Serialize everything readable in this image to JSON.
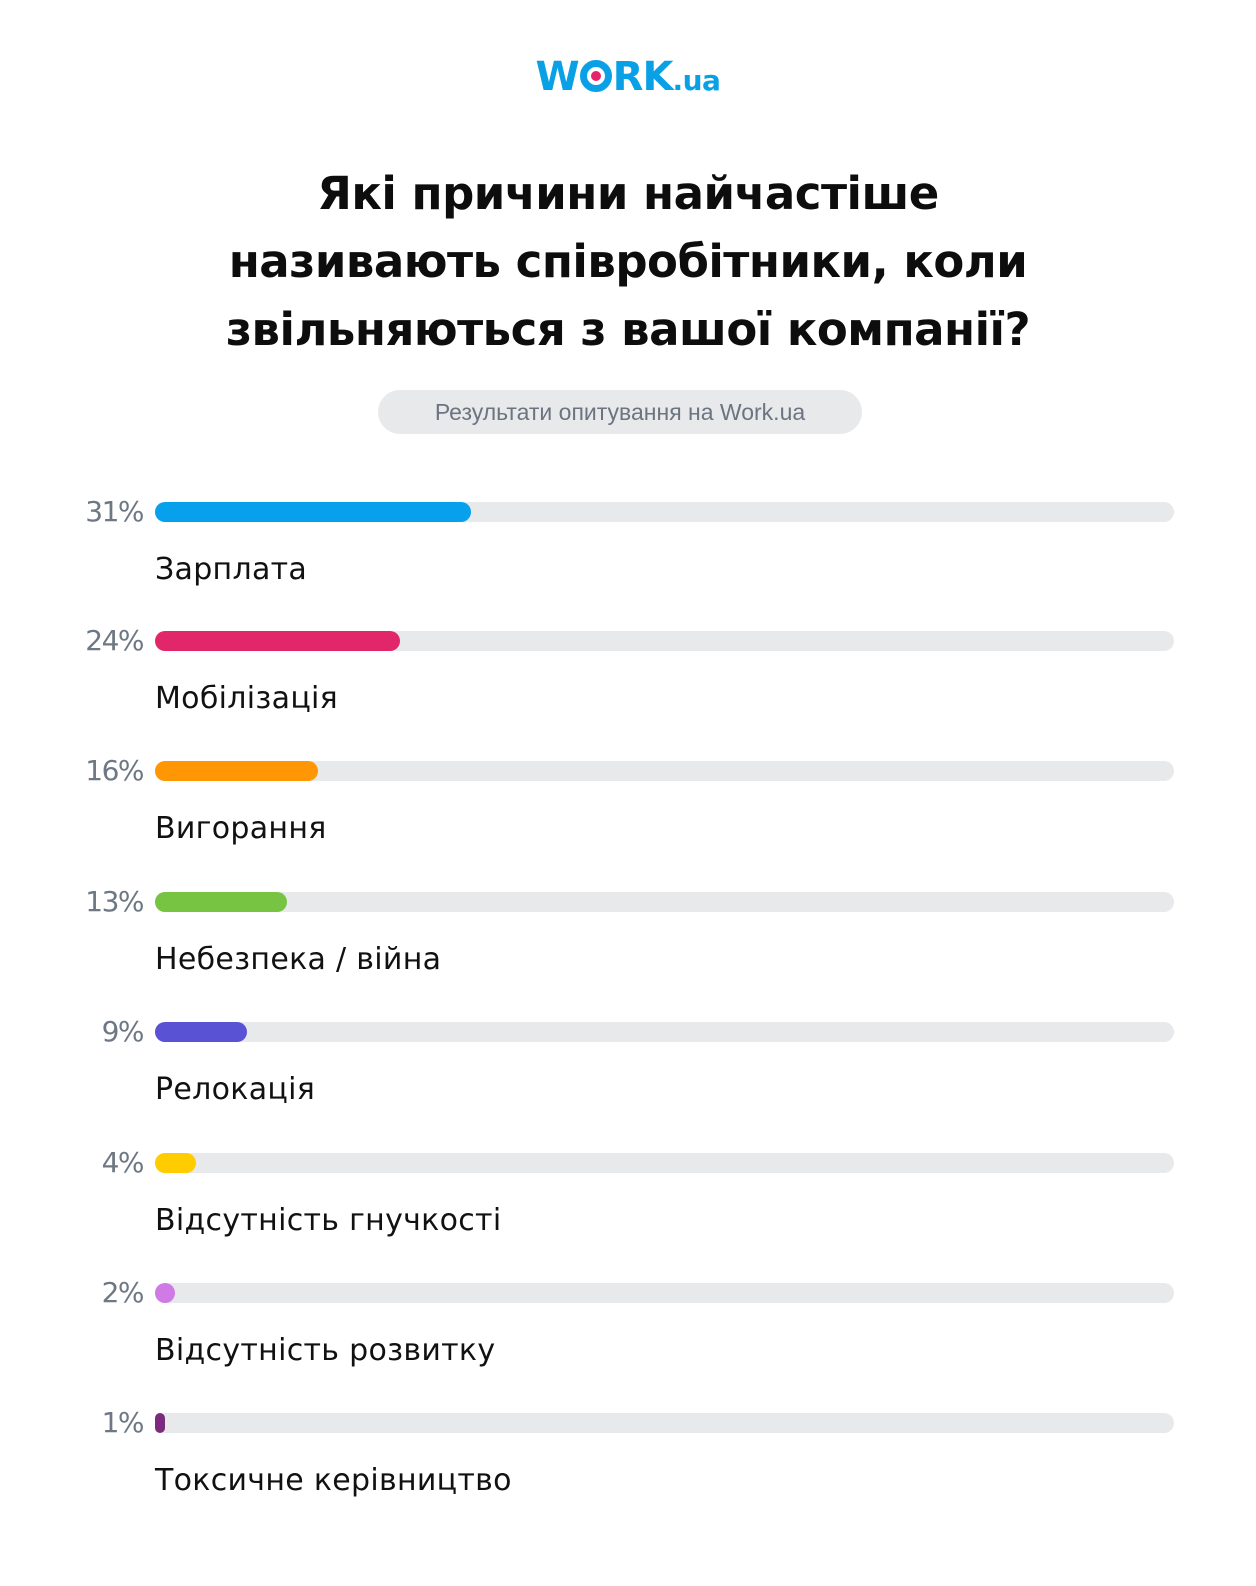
{
  "brand": {
    "logo_main_before": "W",
    "logo_main_after": "RK",
    "logo_suffix": ".ua",
    "primary_color": "#0aa0e6",
    "accent_color": "#e6246a"
  },
  "header": {
    "title_lines": [
      "Які причини найчастіше",
      "називають співробітники, коли",
      "звільняються з вашої компанії?"
    ],
    "subtitle": "Результати опитування на Work.ua"
  },
  "chart_data": {
    "type": "bar",
    "orientation": "horizontal",
    "title": "Які причини найчастіше називають співробітники, коли звільняються з вашої компанії?",
    "subtitle": "Результати опитування на Work.ua",
    "xlabel": "",
    "ylabel": "",
    "xlim": [
      0,
      100
    ],
    "grid": false,
    "legend": "none",
    "categories": [
      "Зарплата",
      "Мобілізація",
      "Вигорання",
      "Небезпека / війна",
      "Релокація",
      "Відсутність гнучкості",
      "Відсутність розвитку",
      "Токсичне керівництво"
    ],
    "values": [
      31,
      24,
      16,
      13,
      9,
      4,
      2,
      1
    ],
    "value_labels": [
      "31%",
      "24%",
      "16%",
      "13%",
      "9%",
      "4%",
      "2%",
      "1%"
    ],
    "colors": [
      "#06a0ec",
      "#e2266a",
      "#ff9705",
      "#76c442",
      "#5952d4",
      "#ffcc00",
      "#d07ae6",
      "#7b2a7d"
    ],
    "track_color": "#e8e9eb"
  }
}
